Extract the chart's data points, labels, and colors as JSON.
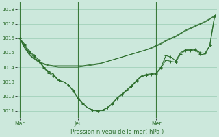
{
  "bg_color": "#cce8dc",
  "grid_color": "#99ccb3",
  "line_color": "#2d6e2d",
  "marker_color": "#2d6e2d",
  "title": "Pression niveau de la mer( hPa )",
  "ylim": [
    1010.5,
    1018.5
  ],
  "yticks": [
    1011,
    1012,
    1013,
    1014,
    1015,
    1016,
    1017,
    1018
  ],
  "xtick_labels": [
    "Mar",
    "Jeu",
    "Mer"
  ],
  "xtick_positions": [
    0,
    12,
    28
  ],
  "n_points": 41,
  "series_dip1": [
    1016.0,
    1015.6,
    1015.1,
    1014.8,
    1014.5,
    1014.0,
    1013.7,
    1013.5,
    1013.1,
    1013.0,
    1012.8,
    1012.4,
    1011.9,
    1011.5,
    1011.2,
    1011.05,
    1011.0,
    1011.05,
    1011.2,
    1011.5,
    1011.9,
    1012.15,
    1012.45,
    1012.75,
    1013.1,
    1013.4,
    1013.5,
    1013.55,
    1013.6,
    1014.0,
    1014.8,
    1014.7,
    1014.45,
    1015.0,
    1015.2,
    1015.2,
    1015.25,
    1015.0,
    1014.95,
    1015.5,
    1017.55
  ],
  "series_dip2": [
    1016.0,
    1015.5,
    1015.0,
    1014.7,
    1014.4,
    1013.95,
    1013.6,
    1013.4,
    1013.1,
    1013.0,
    1012.8,
    1012.35,
    1011.85,
    1011.45,
    1011.2,
    1011.05,
    1011.0,
    1011.05,
    1011.2,
    1011.45,
    1011.85,
    1012.1,
    1012.4,
    1012.7,
    1013.05,
    1013.35,
    1013.45,
    1013.5,
    1013.55,
    1013.95,
    1014.5,
    1014.4,
    1014.35,
    1014.9,
    1015.15,
    1015.15,
    1015.2,
    1014.9,
    1014.85,
    1015.5,
    1017.55
  ],
  "series_flat1": [
    1016.0,
    1015.4,
    1014.9,
    1014.6,
    1014.4,
    1014.25,
    1014.15,
    1014.1,
    1014.1,
    1014.1,
    1014.1,
    1014.1,
    1014.1,
    1014.1,
    1014.15,
    1014.2,
    1014.25,
    1014.3,
    1014.4,
    1014.5,
    1014.6,
    1014.7,
    1014.8,
    1014.9,
    1015.0,
    1015.1,
    1015.2,
    1015.3,
    1015.45,
    1015.6,
    1015.8,
    1015.95,
    1016.1,
    1016.3,
    1016.5,
    1016.65,
    1016.8,
    1016.95,
    1017.1,
    1017.3,
    1017.5
  ],
  "series_flat2": [
    1016.0,
    1015.35,
    1014.85,
    1014.55,
    1014.35,
    1014.2,
    1014.1,
    1014.05,
    1014.0,
    1014.0,
    1014.0,
    1014.0,
    1014.0,
    1014.05,
    1014.1,
    1014.15,
    1014.2,
    1014.3,
    1014.4,
    1014.5,
    1014.6,
    1014.7,
    1014.8,
    1014.9,
    1015.0,
    1015.1,
    1015.2,
    1015.35,
    1015.5,
    1015.65,
    1015.85,
    1016.0,
    1016.15,
    1016.35,
    1016.55,
    1016.7,
    1016.85,
    1017.0,
    1017.15,
    1017.35,
    1017.55
  ]
}
